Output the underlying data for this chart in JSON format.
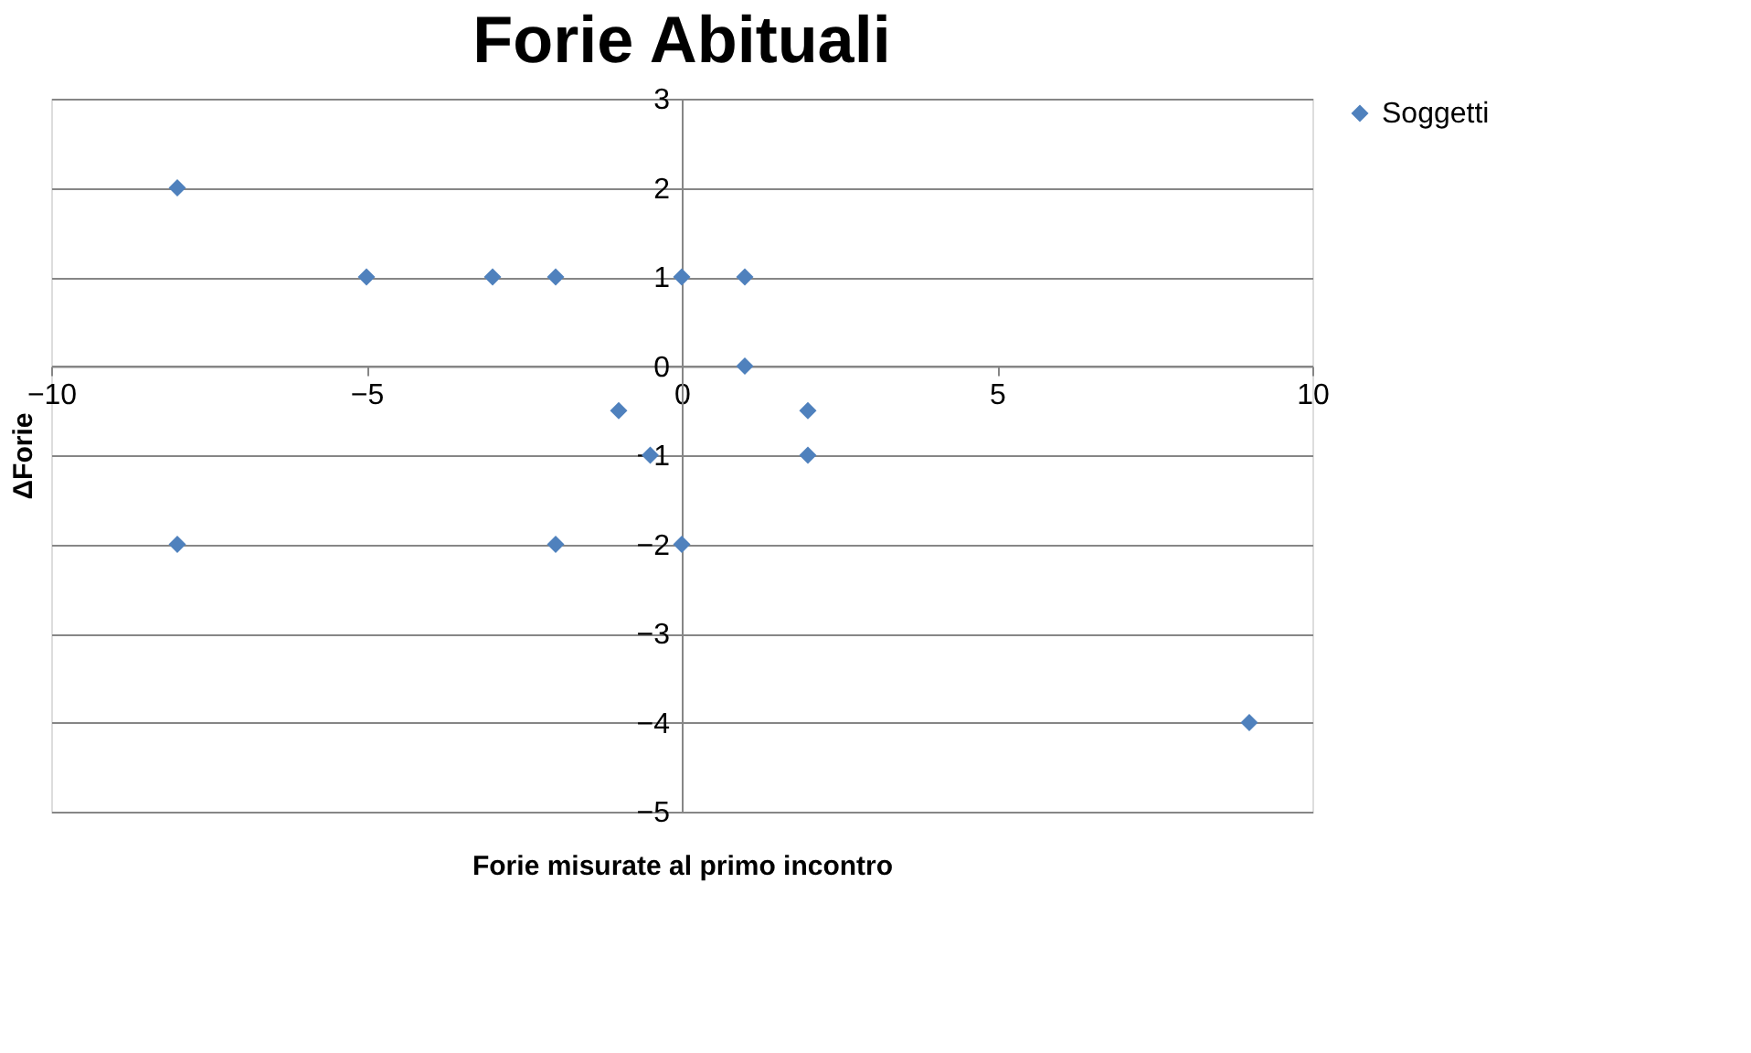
{
  "chart_data": {
    "type": "scatter",
    "title": "Forie Abituali",
    "xlabel": "Forie misurate al primo incontro",
    "ylabel": "ΔForie",
    "series": [
      {
        "name": "Soggetti",
        "color": "#4f81bd",
        "x": [
          -8,
          -5,
          -3,
          -2,
          0,
          1,
          1,
          -1,
          2,
          -0.5,
          2,
          -8,
          -2,
          0,
          9
        ],
        "values": [
          2,
          1,
          1,
          1,
          1,
          1,
          0,
          -0.5,
          -0.5,
          -1,
          -1,
          -2,
          -2,
          -2,
          -4
        ]
      }
    ],
    "xlim": [
      -10,
      10
    ],
    "xticks": [
      -10,
      -5,
      0,
      5,
      10
    ],
    "ylim": [
      -5,
      3
    ],
    "yticks": [
      -5,
      -4,
      -3,
      -2,
      -1,
      0,
      1,
      2,
      3
    ],
    "grid": "y",
    "legend": "right",
    "marker": "diamond"
  }
}
